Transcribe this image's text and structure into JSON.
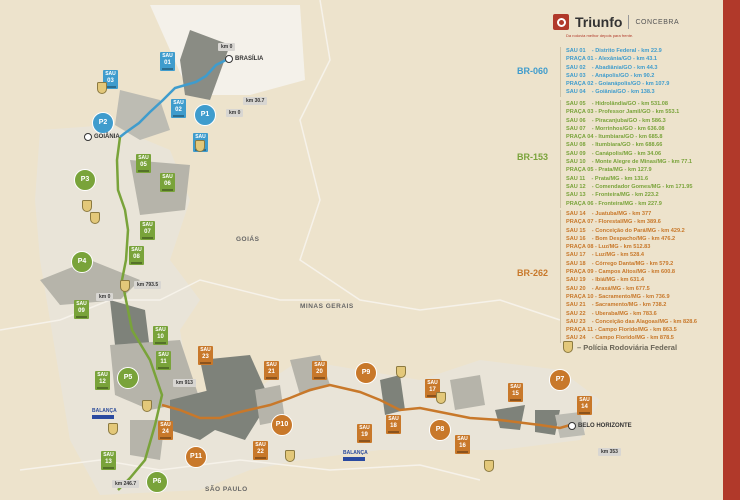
{
  "brand": {
    "name": "Triunfo",
    "sub": "CONCEBRA",
    "tagline": "Da rodovia melhor depois para frente."
  },
  "colors": {
    "br060": "#3f9ccd",
    "br153": "#79a33a",
    "br262": "#c8782a",
    "accent_bar": "#b1392a",
    "balanca": "#2a4aa0"
  },
  "legend": {
    "sections": [
      {
        "road": "BR-060",
        "entries": [
          "SAU 01    - Distrito Federal - km 22.9",
          "PRAÇA 01 - Alexânia/GO - km 43.1",
          "SAU 02    - Abadiânia/GO - km 44.3",
          "SAU 03    - Anápolis/GO - km 90.2",
          "PRAÇA 02 - Goianápolis/GO - km 107.9",
          "SAU 04    - Goiânia/GO - km 138.3"
        ]
      },
      {
        "road": "BR-153",
        "entries": [
          "SAU 05    - Hidrolândia/GO - km 531.08",
          "PRAÇA 03 - Professor Jamil/GO - km 553.1",
          "SAU 06    - Piracanjuba/GO - km 586.3",
          "SAU 07    - Morrinhos/GO - km 636.08",
          "PRAÇA 04 - Itumbiara/GO - km 685.8",
          "SAU 08    - Itumbiara/GO - km 688.66",
          "SAU 09    - Canápolis/MG - km 34.06",
          "SAU 10    - Monte Alegre de Minas/MG - km 77.1",
          "PRAÇA 05 - Prata/MG - km 127.9",
          "SAU 11    - Prata/MG - km 131.6",
          "SAU 12    - Comendador Gomes/MG - km 171.95",
          "SAU 13    - Fronteira/MG - km 223.2",
          "PRAÇA 06 - Fronteira/MG - km 227.9"
        ]
      },
      {
        "road": "BR-262",
        "entries": [
          "SAU 14    - Juatuba/MG - km 377",
          "PRAÇA 07 - Florestal/MG - km 389.6",
          "SAU 15    - Conceição do Pará/MG - km 429.2",
          "SAU 16    - Bom Despacho/MG - km 476.2",
          "PRAÇA 08 - Luz/MG - km 512.83",
          "SAU 17    - Luz/MG - km 528.4",
          "SAU 18    - Córrego Danta/MG - km 579.2",
          "PRAÇA 09 - Campos Altos/MG - km 600.8",
          "SAU 19    - Ibiá/MG - km 631.4",
          "SAU 20    - Araxá/MG - km 677.5",
          "PRAÇA 10 - Sacramento/MG - km 736.9",
          "SAU 21    - Sacramento/MG - km 738.2",
          "SAU 22    - Uberaba/MG - km 783.6",
          "SAU 23    - Conceição das Alagoas/MG - km 828.6",
          "PRAÇA 11 - Campo Florido/MG - km 863.5",
          "SAU 24    - Campo Florido/MG - km 878.5"
        ]
      }
    ],
    "prf": "– Polícia Rodoviária Federal"
  },
  "map": {
    "states": [
      "GOIÁS",
      "MINAS GERAIS",
      "SÃO PAULO"
    ],
    "cities": [
      "BRASÍLIA",
      "GOIÂNIA",
      "BELO HORIZONTE"
    ],
    "sau_prefix": "SAU",
    "badges": [
      {
        "road": "br060",
        "type": "sau",
        "num": "01"
      },
      {
        "road": "br060",
        "type": "sau",
        "num": "02"
      },
      {
        "road": "br060",
        "type": "sau",
        "num": "03"
      },
      {
        "road": "br060",
        "type": "sau",
        "num": "04"
      },
      {
        "road": "br060",
        "type": "praca",
        "num": "P1"
      },
      {
        "road": "br060",
        "type": "praca",
        "num": "P2"
      },
      {
        "road": "br153",
        "type": "sau",
        "num": "05"
      },
      {
        "road": "br153",
        "type": "sau",
        "num": "06"
      },
      {
        "road": "br153",
        "type": "sau",
        "num": "07"
      },
      {
        "road": "br153",
        "type": "sau",
        "num": "08"
      },
      {
        "road": "br153",
        "type": "sau",
        "num": "09"
      },
      {
        "road": "br153",
        "type": "sau",
        "num": "10"
      },
      {
        "road": "br153",
        "type": "sau",
        "num": "11"
      },
      {
        "road": "br153",
        "type": "sau",
        "num": "12"
      },
      {
        "road": "br153",
        "type": "sau",
        "num": "13"
      },
      {
        "road": "br153",
        "type": "praca",
        "num": "P3"
      },
      {
        "road": "br153",
        "type": "praca",
        "num": "P4"
      },
      {
        "road": "br153",
        "type": "praca",
        "num": "P5"
      },
      {
        "road": "br153",
        "type": "praca",
        "num": "P6"
      },
      {
        "road": "br262",
        "type": "sau",
        "num": "14"
      },
      {
        "road": "br262",
        "type": "sau",
        "num": "15"
      },
      {
        "road": "br262",
        "type": "sau",
        "num": "16"
      },
      {
        "road": "br262",
        "type": "sau",
        "num": "17"
      },
      {
        "road": "br262",
        "type": "sau",
        "num": "18"
      },
      {
        "road": "br262",
        "type": "sau",
        "num": "19"
      },
      {
        "road": "br262",
        "type": "sau",
        "num": "20"
      },
      {
        "road": "br262",
        "type": "sau",
        "num": "21"
      },
      {
        "road": "br262",
        "type": "sau",
        "num": "22"
      },
      {
        "road": "br262",
        "type": "sau",
        "num": "23"
      },
      {
        "road": "br262",
        "type": "sau",
        "num": "24"
      },
      {
        "road": "br262",
        "type": "praca",
        "num": "P7"
      },
      {
        "road": "br262",
        "type": "praca",
        "num": "P8"
      },
      {
        "road": "br262",
        "type": "praca",
        "num": "P9"
      },
      {
        "road": "br262",
        "type": "praca",
        "num": "P10"
      },
      {
        "road": "br262",
        "type": "praca",
        "num": "P11"
      }
    ],
    "km_markers": [
      "km 0",
      "km 0",
      "km 30.7",
      "km 793.5",
      "km 0",
      "km 913",
      "km 246.7",
      "km 353"
    ],
    "balanca_label": "BALANÇA"
  }
}
